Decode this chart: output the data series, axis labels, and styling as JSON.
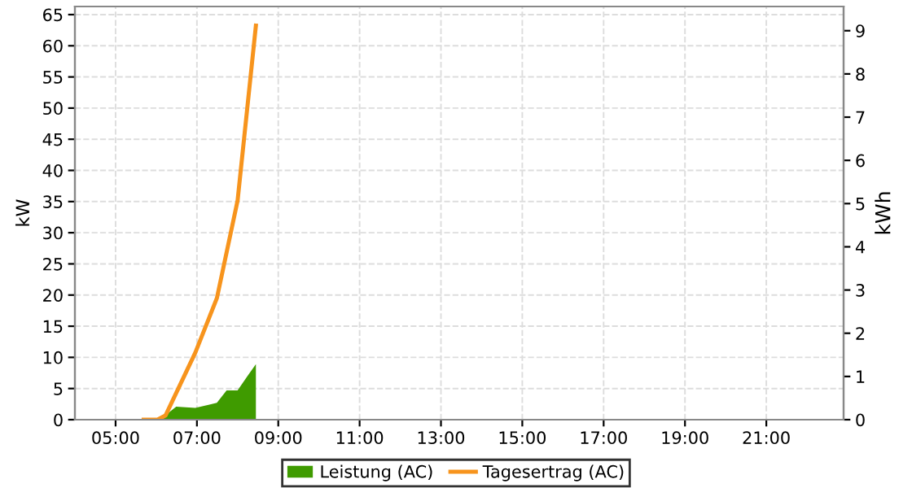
{
  "chart_data": {
    "type": "line",
    "ylabel": "kW",
    "y2label": "kWh",
    "xlim": [
      4,
      22.9
    ],
    "xticks": [
      {
        "value": 5,
        "label": "05:00"
      },
      {
        "value": 7,
        "label": "07:00"
      },
      {
        "value": 9,
        "label": "09:00"
      },
      {
        "value": 11,
        "label": "11:00"
      },
      {
        "value": 13,
        "label": "13:00"
      },
      {
        "value": 15,
        "label": "15:00"
      },
      {
        "value": 17,
        "label": "17:00"
      },
      {
        "value": 19,
        "label": "19:00"
      },
      {
        "value": 21,
        "label": "21:00"
      }
    ],
    "ylim": [
      0,
      66.3
    ],
    "yticks": [
      0,
      5,
      10,
      15,
      20,
      25,
      30,
      35,
      40,
      45,
      50,
      55,
      60,
      65
    ],
    "y2lim": [
      0,
      9.56
    ],
    "y2ticks": [
      0,
      1,
      2,
      3,
      4,
      5,
      6,
      7,
      8,
      9
    ],
    "grid": true,
    "legend": "bottom",
    "series": [
      {
        "name": "Leistung (AC)",
        "type": "area",
        "color": "#3f9b00",
        "x": [
          6.09,
          6.49,
          6.96,
          7.49,
          7.73,
          8.0,
          8.23,
          8.45
        ],
        "values": [
          0,
          2.1,
          1.9,
          2.7,
          4.7,
          4.7,
          6.9,
          8.9
        ]
      },
      {
        "name": "Tagesertrag (AC)",
        "axis": "y2",
        "color": "#f7941d",
        "x": [
          5.69,
          6.03,
          6.23,
          6.96,
          7.49,
          8.0,
          8.45
        ],
        "values": [
          0,
          0,
          0.1,
          1.55,
          2.81,
          5.07,
          9.12
        ]
      }
    ]
  }
}
